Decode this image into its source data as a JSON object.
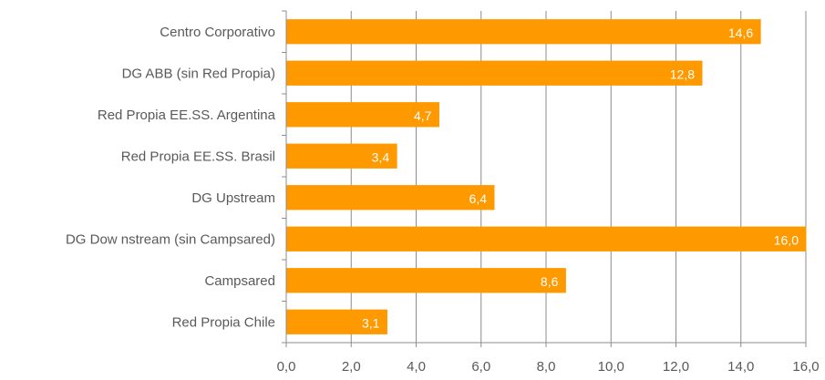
{
  "chart_data": {
    "type": "bar",
    "orientation": "horizontal",
    "categories": [
      "Centro Corporativo",
      "DG ABB (sin Red Propia)",
      "Red Propia EE.SS. Argentina",
      "Red Propia EE.SS. Brasil",
      "DG Upstream",
      "DG Dow nstream (sin Campsared)",
      "Campsared",
      "Red Propia Chile"
    ],
    "values": [
      14.6,
      12.8,
      4.7,
      3.4,
      6.4,
      16.0,
      8.6,
      3.1
    ],
    "data_labels": [
      "14,6",
      "12,8",
      "4,7",
      "3,4",
      "6,4",
      "16,0",
      "8,6",
      "3,1"
    ],
    "xlim": [
      0,
      16
    ],
    "xticks": [
      0,
      2,
      4,
      6,
      8,
      10,
      12,
      14,
      16
    ],
    "xtick_labels": [
      "0,0",
      "2,0",
      "4,0",
      "6,0",
      "8,0",
      "10,0",
      "12,0",
      "14,0",
      "16,0"
    ],
    "grid": "vertical",
    "legend": "none",
    "bar_color": "#FF9900",
    "title": "",
    "xlabel": "",
    "ylabel": ""
  }
}
